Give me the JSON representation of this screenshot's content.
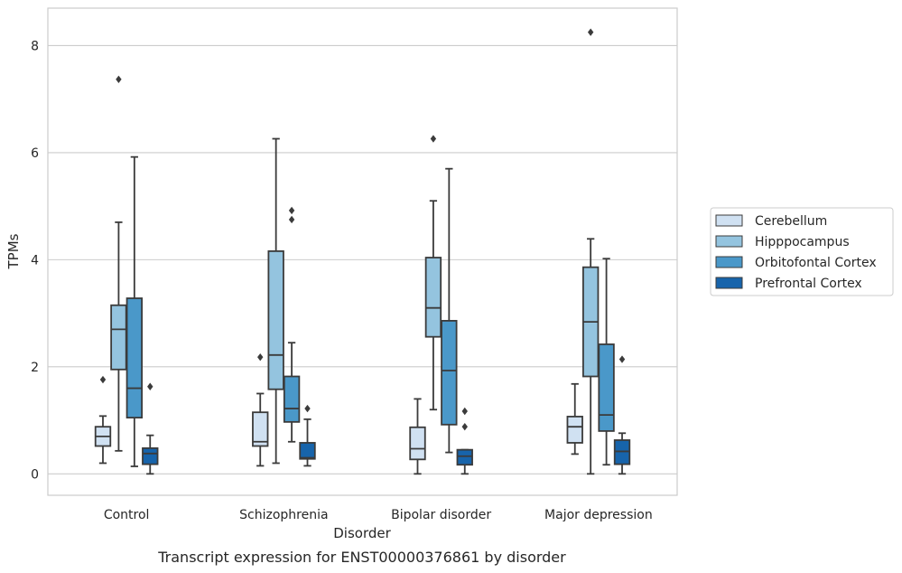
{
  "chart_data": {
    "type": "box",
    "title": "Transcript expression for ENST00000376861 by disorder",
    "xlabel": "Disorder",
    "ylabel": "TPMs",
    "ylim": [
      -0.4,
      8.7
    ],
    "yticks": [
      0,
      2,
      4,
      6,
      8
    ],
    "grid": "horizontal",
    "legend_position": "right",
    "categories": [
      "Control",
      "Schizophrenia",
      "Bipolar disorder",
      "Major depression"
    ],
    "series": [
      {
        "name": "Cerebellum",
        "color": "#d0e1f2",
        "boxes": [
          {
            "whisker_low": 0.2,
            "q1": 0.52,
            "median": 0.7,
            "q3": 0.88,
            "whisker_high": 1.08,
            "outliers": [
              1.76
            ]
          },
          {
            "whisker_low": 0.15,
            "q1": 0.52,
            "median": 0.6,
            "q3": 1.15,
            "whisker_high": 1.5,
            "outliers": [
              2.18
            ]
          },
          {
            "whisker_low": 0.0,
            "q1": 0.27,
            "median": 0.47,
            "q3": 0.87,
            "whisker_high": 1.4,
            "outliers": []
          },
          {
            "whisker_low": 0.37,
            "q1": 0.58,
            "median": 0.88,
            "q3": 1.07,
            "whisker_high": 1.68,
            "outliers": []
          }
        ]
      },
      {
        "name": "Hipppocampus",
        "color": "#94c4df",
        "boxes": [
          {
            "whisker_low": 0.43,
            "q1": 1.95,
            "median": 2.7,
            "q3": 3.15,
            "whisker_high": 4.7,
            "outliers": [
              7.37
            ]
          },
          {
            "whisker_low": 0.2,
            "q1": 1.58,
            "median": 2.22,
            "q3": 4.16,
            "whisker_high": 6.26,
            "outliers": []
          },
          {
            "whisker_low": 1.2,
            "q1": 2.56,
            "median": 3.1,
            "q3": 4.04,
            "whisker_high": 5.1,
            "outliers": [
              6.26
            ]
          },
          {
            "whisker_low": 0.0,
            "q1": 1.82,
            "median": 2.84,
            "q3": 3.86,
            "whisker_high": 4.39,
            "outliers": [
              8.25
            ]
          }
        ]
      },
      {
        "name": "Orbitofontal Cortex",
        "color": "#4a98c9",
        "boxes": [
          {
            "whisker_low": 0.14,
            "q1": 1.05,
            "median": 1.6,
            "q3": 3.28,
            "whisker_high": 5.92,
            "outliers": []
          },
          {
            "whisker_low": 0.6,
            "q1": 0.97,
            "median": 1.22,
            "q3": 1.82,
            "whisker_high": 2.45,
            "outliers": [
              4.75,
              4.92
            ]
          },
          {
            "whisker_low": 0.4,
            "q1": 0.92,
            "median": 1.93,
            "q3": 2.86,
            "whisker_high": 5.7,
            "outliers": []
          },
          {
            "whisker_low": 0.17,
            "q1": 0.8,
            "median": 1.1,
            "q3": 2.42,
            "whisker_high": 4.02,
            "outliers": []
          }
        ]
      },
      {
        "name": "Prefrontal Cortex",
        "color": "#1764ab",
        "boxes": [
          {
            "whisker_low": 0.0,
            "q1": 0.18,
            "median": 0.38,
            "q3": 0.48,
            "whisker_high": 0.72,
            "outliers": [
              1.63
            ]
          },
          {
            "whisker_low": 0.15,
            "q1": 0.28,
            "median": 0.3,
            "q3": 0.58,
            "whisker_high": 1.02,
            "outliers": [
              1.22
            ]
          },
          {
            "whisker_low": 0.0,
            "q1": 0.17,
            "median": 0.33,
            "q3": 0.45,
            "whisker_high": 0.45,
            "outliers": [
              0.88,
              1.17
            ]
          },
          {
            "whisker_low": 0.0,
            "q1": 0.18,
            "median": 0.42,
            "q3": 0.63,
            "whisker_high": 0.76,
            "outliers": [
              2.14
            ]
          }
        ]
      }
    ]
  }
}
